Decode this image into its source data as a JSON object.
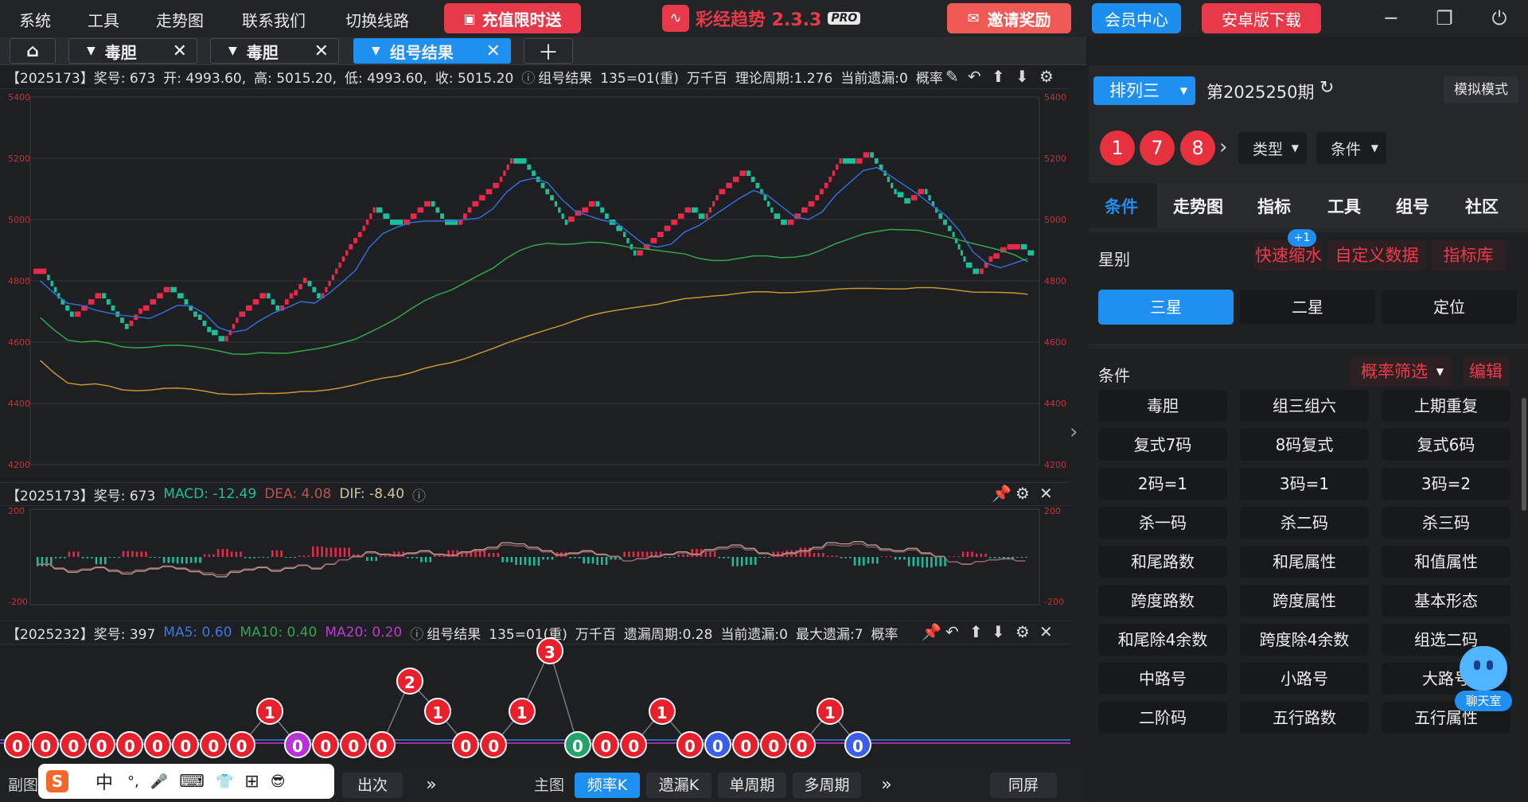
{
  "menu": [
    "系统",
    "工具",
    "走势图",
    "联系我们",
    "切换线路"
  ],
  "promo": {
    "recharge": "充值限时送",
    "invite": "邀请奖励",
    "member": "会员中心",
    "android": "安卓版下载"
  },
  "app": {
    "title": "彩经趋势 2.3.3",
    "badge": "PRO"
  },
  "tabs": [
    {
      "label": "毒胆"
    },
    {
      "label": "毒胆"
    },
    {
      "label": "组号结果"
    }
  ],
  "main_chart": {
    "info": [
      "【2025173】奖号: 673",
      "开: 4993.60,",
      "高: 5015.20,",
      "低: 4993.60,",
      "收: 5015.20",
      "组号结果",
      "135=01(重)",
      "万千百",
      "理论周期:1.276",
      "当前遗漏:0",
      "概率"
    ],
    "ticks": [
      "5400",
      "5200",
      "5000",
      "4800",
      "4600",
      "4400",
      "4200"
    ],
    "colors": {
      "up": "#e8294a",
      "down": "#1dbf9a",
      "ma1": "#2f6fd6",
      "ma2": "#2fa84a",
      "ma3": "#c7962e"
    }
  },
  "chart_data": {
    "type": "line",
    "title": "",
    "y_ticks": [
      4200,
      4400,
      4600,
      4800,
      5000,
      5200,
      5400
    ],
    "ylim": [
      4200,
      5400
    ],
    "series": [
      {
        "values": [
          4820,
          4740,
          4680,
          4720,
          4760,
          4700,
          4650,
          4700,
          4740,
          4780,
          4740,
          4690,
          4640,
          4600,
          4680,
          4720,
          4760,
          4700,
          4750,
          4800,
          4740,
          4820,
          4900,
          4960,
          5040,
          5000,
          4980,
          5020,
          5060,
          5000,
          4980,
          5040,
          5080,
          5120,
          5200,
          5180,
          5120,
          5060,
          4990,
          5020,
          5060,
          5000,
          4960,
          4880,
          4920,
          4960,
          5000,
          5040,
          5000,
          5080,
          5120,
          5160,
          5100,
          5020,
          4980,
          5020,
          5060,
          5120,
          5200,
          5180,
          5220,
          5160,
          5090,
          5060,
          5100,
          5020,
          4960,
          4860,
          4820,
          4870,
          4900,
          4920,
          4880
        ]
      }
    ]
  },
  "macd": {
    "info": [
      "【2025173】奖号: 673",
      "MACD: -12.49",
      "DEA: 4.08",
      "DIF: -8.40"
    ],
    "ticks": [
      "200",
      "-200"
    ]
  },
  "sub": {
    "info": [
      "【2025232】奖号: 397",
      "MA5: 0.60",
      "MA10: 0.40",
      "MA20: 0.20",
      "组号结果",
      "135=01(重)",
      "万千百",
      "遗漏周期:0.28",
      "当前遗漏:0",
      "最大遗漏:7",
      "概率"
    ],
    "chips": [
      "0",
      "0",
      "0",
      "0",
      "0",
      "0",
      "0",
      "0",
      "0",
      "1",
      "0",
      "0",
      "0",
      "0",
      "2",
      "1",
      "0",
      "0",
      "1",
      "3",
      "0",
      "0",
      "0",
      "1",
      "0",
      "0",
      "0",
      "0",
      "0",
      "1",
      "0"
    ]
  },
  "bottom": {
    "fu": "副图",
    "chu": "出次",
    "zhu": "主图",
    "freqk": "频率K",
    "omitk": "遗漏K",
    "single": "单周期",
    "multi": "多周期",
    "same": "同屏"
  },
  "ime": [
    "中",
    "°,",
    "🎤",
    "⌨",
    "👕",
    "⊞",
    "😎"
  ],
  "right": {
    "lottery": "排列三",
    "period": "第2025250期",
    "sim": "模拟模式",
    "balls": [
      "1",
      "7",
      "8"
    ],
    "type": "类型",
    "cond": "条件",
    "tabs": [
      "条件",
      "走势图",
      "指标",
      "工具",
      "组号",
      "社区"
    ],
    "star_label": "星别",
    "quick": "快速缩水",
    "badge": "+1",
    "custom": "自定义数据",
    "indlib": "指标库",
    "stars": [
      "三星",
      "二星",
      "定位"
    ],
    "cond_label": "条件",
    "filter": "概率筛选",
    "edit": "编辑",
    "grid": [
      "毒胆",
      "组三组六",
      "上期重复",
      "复式7码",
      "8码复式",
      "复式6码",
      "2码=1",
      "3码=1",
      "3码=2",
      "杀一码",
      "杀二码",
      "杀三码",
      "和尾路数",
      "和尾属性",
      "和值属性",
      "跨度路数",
      "跨度属性",
      "基本形态",
      "和尾除4余数",
      "跨度除4余数",
      "组选二码",
      "中路号",
      "小路号",
      "大路号",
      "二阶码",
      "五行路数",
      "五行属性"
    ],
    "chat": "聊天室"
  }
}
